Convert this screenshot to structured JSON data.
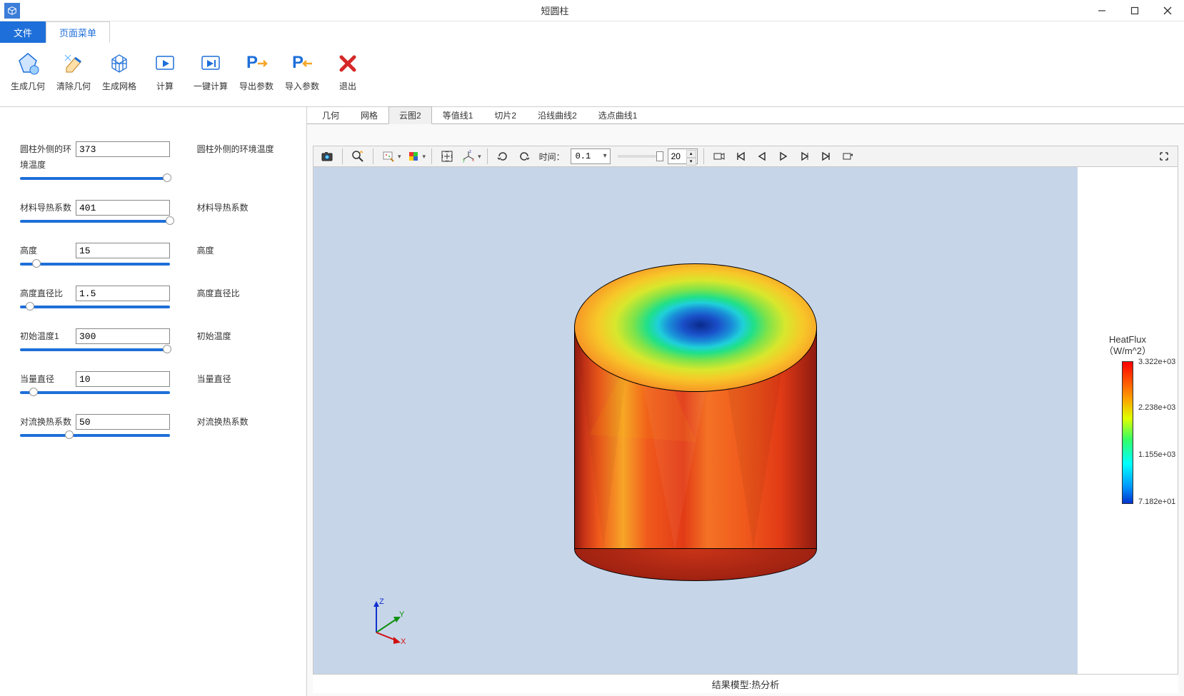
{
  "window": {
    "title": "短圆柱"
  },
  "tabs": {
    "file": "文件",
    "page_menu": "页面菜单"
  },
  "toolbar": [
    {
      "id": "gen-geom",
      "label": "生成几何"
    },
    {
      "id": "clear-geom",
      "label": "清除几何"
    },
    {
      "id": "gen-mesh",
      "label": "生成网格"
    },
    {
      "id": "compute",
      "label": "计算"
    },
    {
      "id": "one-click",
      "label": "一键计算"
    },
    {
      "id": "export-param",
      "label": "导出参数"
    },
    {
      "id": "import-param",
      "label": "导入参数"
    },
    {
      "id": "exit",
      "label": "退出"
    }
  ],
  "parameters": [
    {
      "label": "圆柱外侧的环境温度",
      "value": "373",
      "thumb_pct": 95,
      "desc": "圆柱外侧的环境温度"
    },
    {
      "label": "材料导热系数",
      "value": "401",
      "thumb_pct": 97,
      "desc": "材料导热系数"
    },
    {
      "label": "高度",
      "value": "15",
      "thumb_pct": 8,
      "desc": "高度"
    },
    {
      "label": "高度直径比",
      "value": "1.5",
      "thumb_pct": 4,
      "desc": "高度直径比"
    },
    {
      "label": "初始温度1",
      "value": "300",
      "thumb_pct": 95,
      "desc": "初始温度"
    },
    {
      "label": "当量直径",
      "value": "10",
      "thumb_pct": 6,
      "desc": "当量直径"
    },
    {
      "label": "对流换热系数",
      "value": "50",
      "thumb_pct": 30,
      "desc": "对流换热系数"
    }
  ],
  "view_tabs": [
    {
      "label": "几何",
      "active": false
    },
    {
      "label": "网格",
      "active": false
    },
    {
      "label": "云图2",
      "active": true
    },
    {
      "label": "等值线1",
      "active": false
    },
    {
      "label": "切片2",
      "active": false
    },
    {
      "label": "沿线曲线2",
      "active": false
    },
    {
      "label": "选点曲线1",
      "active": false
    }
  ],
  "view_toolbar": {
    "time_label": "时间：",
    "time_value": "0.1",
    "frame_count": "20"
  },
  "legend": {
    "title": "HeatFlux",
    "unit": "（W/m^2）",
    "max": "3.322e+03",
    "q3": "2.238e+03",
    "q2": "1.155e+03",
    "min": "7.182e+01",
    "colors": [
      "#ff0000",
      "#ff9900",
      "#dfff00",
      "#33ff66",
      "#00ffff",
      "#0099ff",
      "#0033cc"
    ]
  },
  "model_caption": "结果模型:热分析",
  "axes": {
    "x": "X",
    "y": "Y",
    "z": "Z"
  },
  "colors": {
    "accent": "#1e6fd9",
    "canvas_bg": "#c7d5e8",
    "border": "#cfcfcf"
  }
}
